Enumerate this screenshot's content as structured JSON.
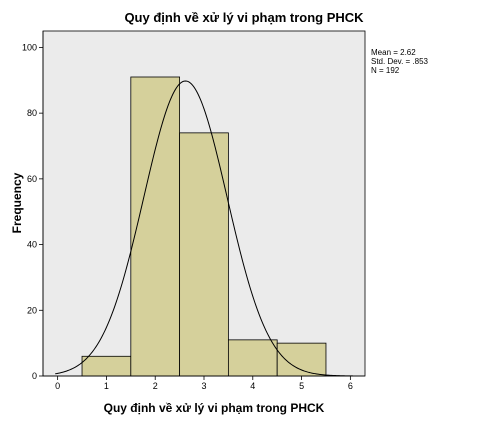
{
  "chart_data": {
    "type": "bar",
    "title": "Quy định về xử lý vi phạm trong PHCK",
    "xlabel": "Quy định về xử lý vi phạm trong PHCK",
    "ylabel": "Frequency",
    "xlim": [
      -0.3,
      6.3
    ],
    "ylim": [
      0,
      105
    ],
    "x_ticks": [
      "0",
      "1",
      "2",
      "3",
      "4",
      "5",
      "6"
    ],
    "y_ticks": [
      "0",
      "20",
      "40",
      "60",
      "80",
      "100"
    ],
    "bins": [
      {
        "from": 0.5,
        "to": 1.5,
        "value": 6
      },
      {
        "from": 1.5,
        "to": 2.5,
        "value": 91
      },
      {
        "from": 2.5,
        "to": 3.5,
        "value": 74
      },
      {
        "from": 3.5,
        "to": 4.5,
        "value": 11
      },
      {
        "from": 4.5,
        "to": 5.5,
        "value": 10
      }
    ],
    "normal_curve": {
      "mean": 2.62,
      "std_dev": 0.853,
      "n": 192,
      "bin_width": 1
    },
    "stats_labels": [
      "Mean = 2.62",
      "Std. Dev. = .853",
      "N = 192"
    ],
    "grid": false,
    "colors": {
      "bar_fill": "#d5d09b",
      "bar_stroke": "#000000",
      "plot_bg": "#ebebeb",
      "curve": "#000000"
    }
  }
}
